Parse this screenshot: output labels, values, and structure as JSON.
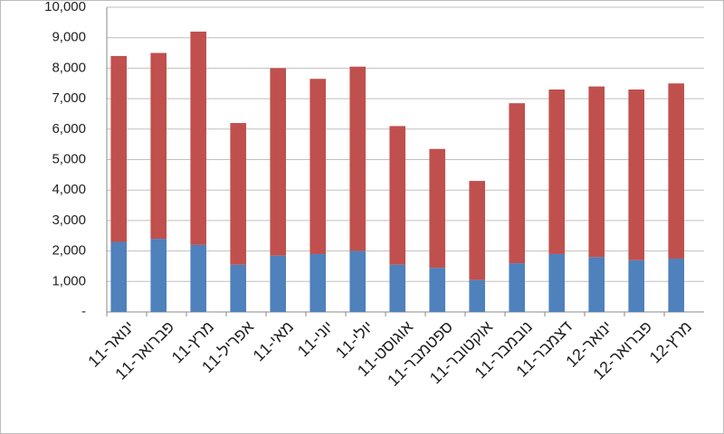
{
  "chart_data": {
    "type": "stacked-bar",
    "categories": [
      "ינואר-11",
      "פברואר-11",
      "מרץ-11",
      "אפריל-11",
      "מאי-11",
      "יוני-11",
      "יולי-11",
      "אוגוסט-11",
      "ספטמבר-11",
      "אוקטובר-11",
      "נובמבר-11",
      "דצמבר-11",
      "ינואר-12",
      "פברואר-12",
      "מרץ-12"
    ],
    "series": [
      {
        "color": "#4f81bd",
        "values": [
          2300,
          2400,
          2200,
          1550,
          1850,
          1900,
          2000,
          1550,
          1450,
          1050,
          1600,
          1900,
          1800,
          1700,
          1750
        ]
      },
      {
        "color": "#c0504d",
        "values": [
          6100,
          6100,
          7000,
          4650,
          6150,
          5750,
          6050,
          4550,
          3900,
          3250,
          5250,
          5400,
          5600,
          5600,
          5750
        ]
      }
    ],
    "ylim": [
      0,
      10000
    ],
    "yticks": [
      {
        "value": 0,
        "label": "-"
      },
      {
        "value": 1000,
        "label": "1,000"
      },
      {
        "value": 2000,
        "label": "2,000"
      },
      {
        "value": 3000,
        "label": "3,000"
      },
      {
        "value": 4000,
        "label": "4,000"
      },
      {
        "value": 5000,
        "label": "5,000"
      },
      {
        "value": 6000,
        "label": "6,000"
      },
      {
        "value": 7000,
        "label": "7,000"
      },
      {
        "value": 8000,
        "label": "8,000"
      },
      {
        "value": 9000,
        "label": "9,000"
      },
      {
        "value": 10000,
        "label": "10,000"
      }
    ],
    "grid": true
  }
}
